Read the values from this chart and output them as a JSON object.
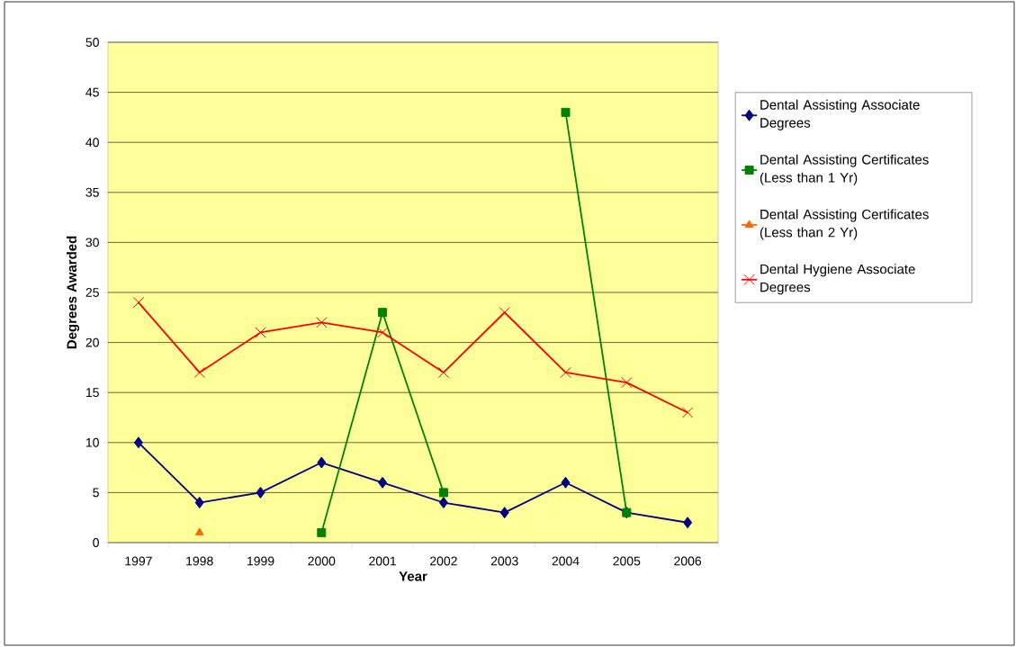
{
  "chart_data": {
    "type": "line",
    "xlabel": "Year",
    "ylabel": "Degrees Awarded",
    "categories": [
      "1997",
      "1998",
      "1999",
      "2000",
      "2001",
      "2002",
      "2003",
      "2004",
      "2005",
      "2006"
    ],
    "series": [
      {
        "name": "Dental Assisting Associate Degrees",
        "color": "#000080",
        "marker": "diamond",
        "values": [
          10,
          4,
          5,
          8,
          6,
          4,
          3,
          6,
          3,
          2
        ]
      },
      {
        "name": "Dental Assisting Certificates (Less than 1 Yr)",
        "color": "#008000",
        "marker": "square",
        "values": [
          null,
          null,
          null,
          1,
          23,
          5,
          null,
          43,
          3,
          null
        ]
      },
      {
        "name": "Dental Assisting Certificates (Less than 2 Yr)",
        "color": "#ff6600",
        "marker": "triangle",
        "values": [
          null,
          1,
          null,
          null,
          null,
          null,
          null,
          null,
          null,
          null
        ]
      },
      {
        "name": "Dental Hygiene Associate Degrees",
        "color": "#ff0000",
        "marker": "cross",
        "values": [
          24,
          17,
          21,
          22,
          21,
          17,
          23,
          17,
          16,
          13
        ]
      }
    ],
    "ylim": [
      0,
      50
    ],
    "yticks": [
      0,
      5,
      10,
      15,
      20,
      25,
      30,
      35,
      40,
      45,
      50
    ],
    "grid": "y",
    "legend": "right",
    "line_style": "solid"
  }
}
